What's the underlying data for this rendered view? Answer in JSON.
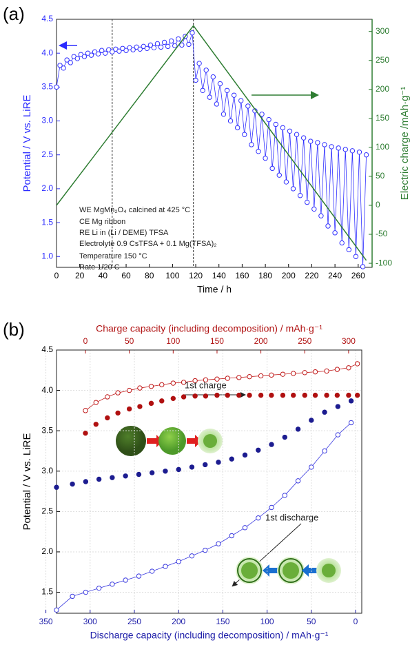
{
  "chart_data": [
    {
      "type": "line",
      "panel": "(a)",
      "x_label": "Time / h",
      "y_label": "Potential / V vs. LiRE",
      "y2_label": "Electric charge /mAh·g⁻¹",
      "xlim": [
        0,
        272
      ],
      "ylim": [
        0.84,
        4.5
      ],
      "y2lim": [
        -107,
        321
      ],
      "xticks": [
        0,
        20,
        40,
        60,
        80,
        100,
        120,
        140,
        160,
        180,
        200,
        220,
        240,
        260
      ],
      "yticks": [
        {
          "value": 1,
          "label": "1.0"
        },
        1.5,
        {
          "value": 2,
          "label": "2.0"
        },
        2.5,
        {
          "value": 3,
          "label": "3.0"
        },
        3.5,
        {
          "value": 4,
          "label": "4.0"
        },
        4.5
      ],
      "y2ticks": [
        -100,
        -50,
        0,
        50,
        100,
        150,
        200,
        250,
        300
      ],
      "axis_colors": {
        "x": "#000000",
        "y": "#2b2bff",
        "y2": "#2e7d32"
      },
      "grid": false,
      "vlines": [
        48,
        118
      ],
      "annotations": [
        "WE  MgMn₂O₄ calcined at 425 °C",
        "CE   Mg ribbon",
        "RE   Li in (Li / DEME) TFSA",
        "Electrolyte 0.9 CsTFSA + 0.1 Mg(TFSA)₂",
        "Temperature  150 °C",
        "Rate   1/20 C"
      ],
      "series": [
        {
          "color": "#3030ff",
          "marker": "open",
          "line": true,
          "x": [
            0,
            3,
            6,
            9,
            12,
            15,
            18,
            21,
            24,
            27,
            30,
            33,
            36,
            39,
            42,
            45,
            48,
            51,
            54,
            57,
            60,
            63,
            66,
            69,
            72,
            75,
            78,
            81,
            84,
            87,
            90,
            93,
            96,
            99,
            102,
            105,
            108,
            111,
            114,
            117,
            120,
            123,
            126,
            129,
            132,
            135,
            138,
            141,
            144,
            147,
            150,
            153,
            156,
            159,
            162,
            165,
            168,
            171,
            174,
            177,
            180,
            183,
            186,
            189,
            192,
            195,
            198,
            201,
            204,
            207,
            210,
            213,
            216,
            219,
            222,
            225,
            228,
            231,
            234,
            237,
            240,
            243,
            246,
            249,
            252,
            255,
            258,
            261,
            264,
            267
          ],
          "values": [
            3.5,
            3.82,
            3.78,
            3.9,
            3.86,
            3.95,
            3.92,
            3.98,
            3.95,
            4.0,
            3.97,
            4.02,
            3.99,
            4.04,
            4.0,
            4.05,
            4.02,
            4.06,
            4.03,
            4.07,
            4.04,
            4.08,
            4.05,
            4.09,
            4.06,
            4.1,
            4.07,
            4.12,
            4.08,
            4.14,
            4.09,
            4.16,
            4.1,
            4.18,
            4.11,
            4.21,
            4.12,
            4.25,
            4.13,
            4.3,
            3.6,
            3.85,
            3.45,
            3.75,
            3.35,
            3.65,
            3.25,
            3.55,
            3.1,
            3.45,
            3.0,
            3.38,
            2.9,
            3.3,
            2.8,
            3.22,
            2.65,
            3.15,
            2.55,
            3.1,
            2.45,
            3.02,
            2.3,
            2.95,
            2.2,
            2.9,
            2.1,
            2.85,
            2.0,
            2.8,
            1.9,
            2.75,
            1.8,
            2.7,
            1.7,
            2.68,
            1.6,
            2.65,
            1.45,
            2.62,
            1.35,
            2.6,
            1.2,
            2.58,
            1.1,
            2.56,
            1.0,
            2.54,
            0.85,
            2.5
          ]
        },
        {
          "color": "#2e7d32",
          "marker": "none",
          "line": true,
          "axis": "y2",
          "x": [
            0,
            118,
            267
          ],
          "values": [
            0,
            310,
            -95
          ]
        }
      ]
    },
    {
      "type": "line",
      "panel": "(b)",
      "x_label": "Discharge capacity (including decomposition) / mAh·g⁻¹",
      "x2_label": "Charge capacity (including decomposition) / mAh·g⁻¹",
      "y_label": "Potential / V vs. LiRE",
      "xlim": [
        338,
        -7
      ],
      "x2lim": [
        -33,
        315
      ],
      "ylim": [
        1.24,
        4.5
      ],
      "xticks": [
        350,
        300,
        250,
        200,
        150,
        100,
        50,
        0
      ],
      "x2ticks": [
        0,
        50,
        100,
        150,
        200,
        250,
        300
      ],
      "yticks": [
        1.5,
        {
          "value": 2,
          "label": "2.0"
        },
        2.5,
        {
          "value": 3,
          "label": "3.0"
        },
        3.5,
        {
          "value": 4,
          "label": "4.0"
        },
        4.5
      ],
      "axis_colors": {
        "x": "#1c1ca8",
        "x2": "#b01010",
        "y": "#000000"
      },
      "grid": true,
      "annotations": [
        "1st charge",
        "1st discharge"
      ],
      "series": [
        {
          "color": "#c01818",
          "marker": "open",
          "line": true,
          "axis": "x2",
          "x": [
            0,
            12,
            25,
            37,
            50,
            62,
            75,
            87,
            100,
            112,
            125,
            137,
            150,
            162,
            175,
            187,
            200,
            212,
            225,
            237,
            250,
            262,
            275,
            287,
            300,
            310
          ],
          "values": [
            3.75,
            3.85,
            3.92,
            3.97,
            4.0,
            4.03,
            4.05,
            4.07,
            4.09,
            4.1,
            4.12,
            4.13,
            4.14,
            4.15,
            4.16,
            4.17,
            4.18,
            4.19,
            4.2,
            4.21,
            4.22,
            4.23,
            4.24,
            4.26,
            4.28,
            4.33
          ]
        },
        {
          "color": "#b01010",
          "marker": "filled",
          "line": false,
          "axis": "x2",
          "x": [
            0,
            12,
            25,
            37,
            50,
            62,
            75,
            87,
            100,
            112,
            125,
            137,
            150,
            162,
            175,
            187,
            200,
            212,
            225,
            237,
            250,
            262,
            275,
            287,
            300,
            310
          ],
          "values": [
            3.47,
            3.58,
            3.66,
            3.72,
            3.77,
            3.8,
            3.84,
            3.87,
            3.9,
            3.92,
            3.93,
            3.93,
            3.94,
            3.94,
            3.94,
            3.94,
            3.94,
            3.94,
            3.94,
            3.94,
            3.94,
            3.94,
            3.94,
            3.94,
            3.94,
            3.94
          ]
        },
        {
          "color": "#3a3adf",
          "marker": "open",
          "line": true,
          "x": [
            338,
            320,
            305,
            290,
            275,
            260,
            245,
            230,
            215,
            200,
            185,
            170,
            155,
            140,
            125,
            110,
            95,
            80,
            65,
            50,
            35,
            20,
            5
          ],
          "values": [
            1.28,
            1.45,
            1.5,
            1.55,
            1.6,
            1.65,
            1.7,
            1.76,
            1.82,
            1.88,
            1.95,
            2.02,
            2.1,
            2.2,
            2.3,
            2.42,
            2.55,
            2.7,
            2.88,
            3.05,
            3.25,
            3.45,
            3.6
          ]
        },
        {
          "color": "#1c1c90",
          "marker": "filled",
          "line": false,
          "x": [
            338,
            320,
            305,
            290,
            275,
            260,
            245,
            230,
            215,
            200,
            185,
            170,
            155,
            140,
            125,
            110,
            95,
            80,
            65,
            50,
            35,
            20,
            5
          ],
          "values": [
            2.8,
            2.84,
            2.87,
            2.9,
            2.92,
            2.94,
            2.96,
            2.98,
            3.0,
            3.02,
            3.05,
            3.08,
            3.11,
            3.15,
            3.2,
            3.26,
            3.33,
            3.42,
            3.52,
            3.63,
            3.73,
            3.8,
            3.87
          ]
        }
      ]
    }
  ]
}
